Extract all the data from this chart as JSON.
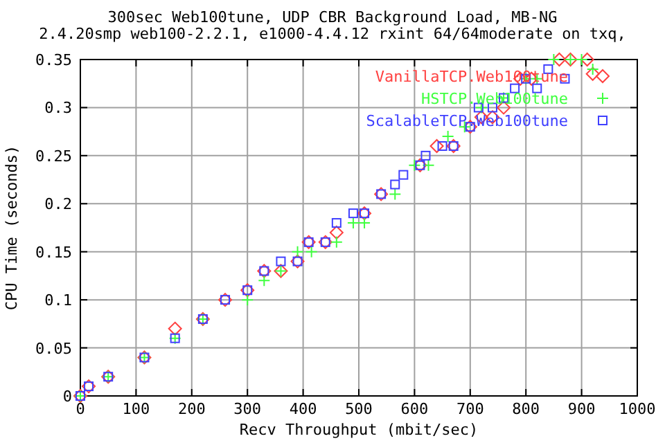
{
  "chart_data": {
    "type": "scatter",
    "title": "300sec Web100tune, UDP CBR Background Load, MB-NG",
    "subtitle": "2.4.20smp web100-2.2.1, e1000-4.4.12 rxint 64/64moderate on txq,",
    "xlabel": "Recv Throughput (mbit/sec)",
    "ylabel": "CPU Time (seconds)",
    "xlim": [
      0,
      1000
    ],
    "ylim": [
      0,
      0.35
    ],
    "xticks": [
      0,
      100,
      200,
      300,
      400,
      500,
      600,
      700,
      800,
      900,
      1000
    ],
    "yticks": [
      0,
      0.05,
      0.1,
      0.15,
      0.2,
      0.25,
      0.3,
      0.35
    ],
    "grid": true,
    "legend": "top right",
    "series": [
      {
        "name": "VanillaTCP.Web100tune",
        "color": "#ff4040",
        "marker": "diamond",
        "x": [
          0,
          15,
          50,
          115,
          170,
          220,
          260,
          300,
          330,
          360,
          390,
          410,
          440,
          460,
          510,
          540,
          610,
          640,
          670,
          700,
          720,
          740,
          760,
          790,
          810,
          860,
          880,
          910,
          920
        ],
        "values": [
          0,
          0.01,
          0.02,
          0.04,
          0.07,
          0.08,
          0.1,
          0.11,
          0.13,
          0.13,
          0.14,
          0.16,
          0.16,
          0.17,
          0.19,
          0.21,
          0.24,
          0.26,
          0.26,
          0.28,
          0.29,
          0.29,
          0.3,
          0.33,
          0.33,
          0.35,
          0.35,
          0.35,
          0.335
        ]
      },
      {
        "name": "HSTCP.Web100tune",
        "color": "#40ff40",
        "marker": "cross",
        "x": [
          0,
          50,
          115,
          170,
          220,
          300,
          330,
          360,
          390,
          415,
          460,
          490,
          510,
          565,
          600,
          625,
          660,
          690,
          720,
          760,
          800,
          820,
          850,
          880,
          900,
          920
        ],
        "values": [
          0,
          0.02,
          0.04,
          0.06,
          0.08,
          0.1,
          0.12,
          0.13,
          0.15,
          0.15,
          0.16,
          0.18,
          0.18,
          0.21,
          0.24,
          0.24,
          0.27,
          0.28,
          0.3,
          0.31,
          0.33,
          0.33,
          0.35,
          0.35,
          0.35,
          0.34
        ]
      },
      {
        "name": "ScalableTCP.Web100tune",
        "color": "#4040ff",
        "marker": "square",
        "x": [
          0,
          15,
          50,
          115,
          170,
          220,
          260,
          300,
          330,
          360,
          390,
          410,
          440,
          460,
          490,
          510,
          540,
          565,
          580,
          610,
          620,
          650,
          670,
          700,
          715,
          740,
          760,
          780,
          800,
          820,
          840,
          870
        ],
        "values": [
          0,
          0.01,
          0.02,
          0.04,
          0.06,
          0.08,
          0.1,
          0.11,
          0.13,
          0.14,
          0.14,
          0.16,
          0.16,
          0.18,
          0.19,
          0.19,
          0.21,
          0.22,
          0.23,
          0.24,
          0.25,
          0.26,
          0.26,
          0.28,
          0.3,
          0.3,
          0.31,
          0.32,
          0.33,
          0.32,
          0.34,
          0.33
        ]
      }
    ]
  }
}
